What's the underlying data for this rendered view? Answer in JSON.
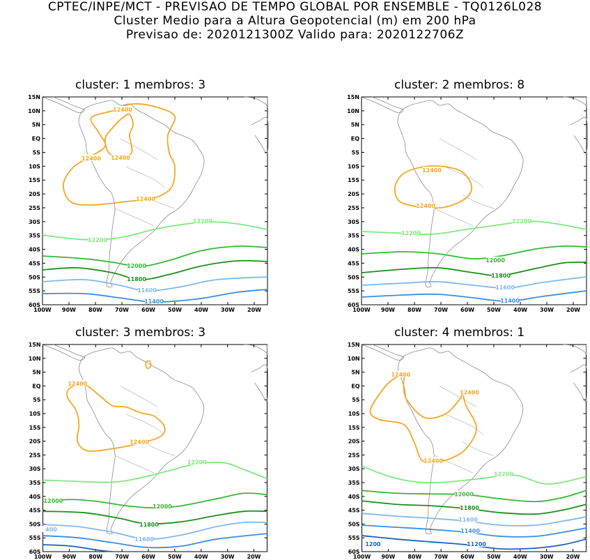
{
  "header": {
    "line1": "CPTEC/INPE/MCT - PREVISAO DE TEMPO GLOBAL POR ENSEMBLE - TQ0126L028",
    "line2": "Cluster Medio para a Altura Geopotencial (m) em 200 hPa",
    "line3": "Previsao de: 2020121300Z   Valido para: 2020122706Z"
  },
  "lat_ticks": [
    "15N",
    "10N",
    "5N",
    "EQ",
    "5S",
    "10S",
    "15S",
    "20S",
    "25S",
    "30S",
    "35S",
    "40S",
    "45S",
    "50S",
    "55S",
    "60S"
  ],
  "lon_ticks": [
    "100W",
    "90W",
    "80W",
    "70W",
    "60W",
    "50W",
    "40W",
    "30W",
    "20W"
  ],
  "colors": {
    "c12400": "#f5a623",
    "c12200": "#7fe77f",
    "c12000": "#33b833",
    "c11800": "#1a8f1a",
    "c11600": "#7fb8ee",
    "c11400": "#3a8de0",
    "c11200": "#1c5fb8",
    "coast": "#8a8a8a"
  },
  "panels": [
    {
      "title": "cluster: 1   membros: 3",
      "labels": {
        "a": "12400",
        "b": "12400",
        "c": "12400",
        "d": "12400",
        "e": "12200",
        "f": "12200",
        "g": "12000",
        "h": "11800",
        "i": "11600",
        "j": "11400"
      }
    },
    {
      "title": "cluster: 2   membros: 8",
      "labels": {
        "a": "12400",
        "b": "12400",
        "e": "12200",
        "f": "12200",
        "g": "12000",
        "h": "11800",
        "i": "11600",
        "j": "11400"
      }
    },
    {
      "title": "cluster: 3   membros: 3",
      "labels": {
        "a": "12400",
        "b": "12400",
        "e": "12200",
        "g1": "12000",
        "g": "12000",
        "h": "11800",
        "k": "400",
        "i": "11600"
      }
    },
    {
      "title": "cluster: 4   membros: 1",
      "labels": {
        "a": "12400",
        "b": "12400",
        "c": "12400",
        "e": "12200",
        "g": "12000",
        "h": "11800",
        "i": "11600",
        "j": "11400",
        "k": "1200",
        "l": "11200"
      }
    }
  ]
}
